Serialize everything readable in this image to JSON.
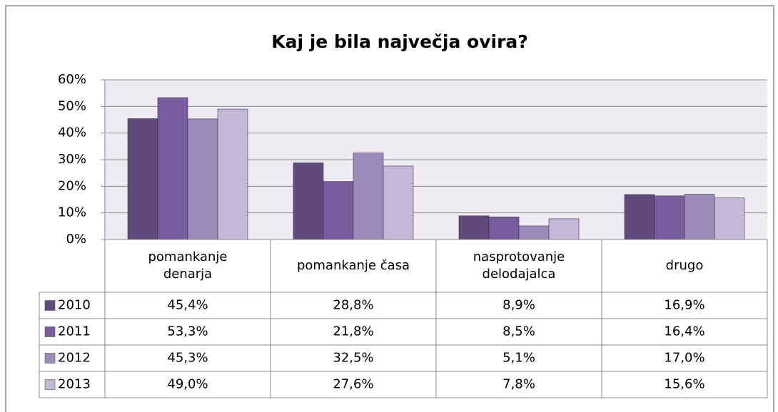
{
  "chart_data": {
    "type": "bar",
    "title": "Kaj je bila največja ovira?",
    "categories": [
      "pomankanje denarja",
      "pomankanje časa",
      "nasprotovanje delodajalca",
      "drugo"
    ],
    "series": [
      {
        "name": "2010",
        "color": "#604a7b",
        "values": [
          45.4,
          28.8,
          8.9,
          16.9
        ],
        "value_labels": [
          "45,4%",
          "28,8%",
          "8,9%",
          "16,9%"
        ]
      },
      {
        "name": "2011",
        "color": "#775c9e",
        "values": [
          53.3,
          21.8,
          8.5,
          16.4
        ],
        "value_labels": [
          "53,3%",
          "21,8%",
          "8,5%",
          "16,4%"
        ]
      },
      {
        "name": "2012",
        "color": "#9d8bb9",
        "values": [
          45.3,
          32.5,
          5.1,
          17.0
        ],
        "value_labels": [
          "45,3%",
          "32,5%",
          "5,1%",
          "17,0%"
        ]
      },
      {
        "name": "2013",
        "color": "#c4b8d6",
        "values": [
          49.0,
          27.6,
          7.8,
          15.6
        ],
        "value_labels": [
          "49,0%",
          "27,6%",
          "7,8%",
          "15,6%"
        ]
      }
    ],
    "ylim": [
      0,
      60
    ],
    "yticks": [
      {
        "value": 0,
        "label": "0%"
      },
      {
        "value": 10,
        "label": "10%"
      },
      {
        "value": 20,
        "label": "20%"
      },
      {
        "value": 30,
        "label": "30%"
      },
      {
        "value": 40,
        "label": "40%"
      },
      {
        "value": 50,
        "label": "50%"
      },
      {
        "value": 60,
        "label": "60%"
      }
    ],
    "grid": true
  }
}
